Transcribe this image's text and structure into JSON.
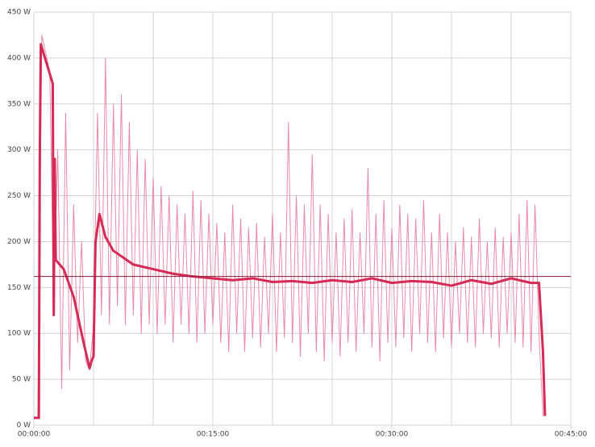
{
  "chart_data": {
    "type": "line",
    "xlim": [
      0,
      2700
    ],
    "ylim": [
      0,
      450
    ],
    "xgrid": [
      0,
      300,
      600,
      900,
      1200,
      1500,
      1800,
      2100,
      2400,
      2700
    ],
    "xticks": [
      {
        "value": 0,
        "label": "00:00:00"
      },
      {
        "value": 900,
        "label": "00:15:00"
      },
      {
        "value": 1800,
        "label": "00:30:00"
      },
      {
        "value": 2700,
        "label": "00:45:00"
      }
    ],
    "yticks": [
      {
        "value": 0,
        "label": "0 W"
      },
      {
        "value": 50,
        "label": "50 W"
      },
      {
        "value": 100,
        "label": "100 W"
      },
      {
        "value": 150,
        "label": "150 W"
      },
      {
        "value": 200,
        "label": "200 W"
      },
      {
        "value": 250,
        "label": "250 W"
      },
      {
        "value": 300,
        "label": "300 W"
      },
      {
        "value": 350,
        "label": "350 W"
      },
      {
        "value": 400,
        "label": "400 W"
      },
      {
        "value": 450,
        "label": "450 W"
      }
    ],
    "grid": true,
    "average": 162,
    "average_color": "#8b1a3a",
    "series": [
      {
        "color": "#e98aa2",
        "width": 1,
        "x": [
          0,
          20,
          40,
          60,
          80,
          100,
          120,
          140,
          160,
          180,
          200,
          220,
          240,
          260,
          280,
          300,
          320,
          340,
          360,
          380,
          400,
          420,
          440,
          460,
          480,
          500,
          520,
          540,
          560,
          580,
          600,
          620,
          640,
          660,
          680,
          700,
          720,
          740,
          760,
          780,
          800,
          820,
          840,
          860,
          880,
          900,
          920,
          940,
          960,
          980,
          1000,
          1020,
          1040,
          1060,
          1080,
          1100,
          1120,
          1140,
          1160,
          1180,
          1200,
          1220,
          1240,
          1260,
          1280,
          1300,
          1320,
          1340,
          1360,
          1380,
          1400,
          1420,
          1440,
          1460,
          1480,
          1500,
          1520,
          1540,
          1560,
          1580,
          1600,
          1620,
          1640,
          1660,
          1680,
          1700,
          1720,
          1740,
          1760,
          1780,
          1800,
          1820,
          1840,
          1860,
          1880,
          1900,
          1920,
          1940,
          1960,
          1980,
          2000,
          2020,
          2040,
          2060,
          2080,
          2100,
          2120,
          2140,
          2160,
          2180,
          2200,
          2220,
          2240,
          2260,
          2280,
          2300,
          2320,
          2340,
          2360,
          2380,
          2400,
          2420,
          2440,
          2460,
          2480,
          2500,
          2520,
          2540,
          2560
        ],
        "values": [
          8,
          8,
          425,
          405,
          385,
          130,
          300,
          40,
          340,
          60,
          240,
          90,
          200,
          70,
          60,
          110,
          340,
          120,
          400,
          110,
          350,
          130,
          360,
          110,
          330,
          120,
          300,
          100,
          290,
          110,
          270,
          100,
          260,
          110,
          250,
          90,
          240,
          110,
          230,
          100,
          255,
          90,
          245,
          100,
          230,
          110,
          220,
          90,
          210,
          80,
          240,
          100,
          225,
          80,
          215,
          95,
          220,
          85,
          205,
          100,
          230,
          80,
          210,
          95,
          330,
          90,
          250,
          75,
          240,
          100,
          295,
          80,
          240,
          70,
          230,
          90,
          210,
          75,
          225,
          90,
          235,
          80,
          210,
          100,
          280,
          85,
          230,
          70,
          245,
          90,
          215,
          85,
          240,
          95,
          230,
          80,
          225,
          100,
          245,
          90,
          210,
          80,
          230,
          95,
          210,
          85,
          200,
          100,
          215,
          90,
          205,
          85,
          225,
          100,
          200,
          95,
          215,
          85,
          205,
          100,
          210,
          90,
          230,
          85,
          245,
          80,
          240,
          100,
          10
        ]
      },
      {
        "color": "#d42a55",
        "width": 3,
        "x": [
          0,
          25,
          30,
          35,
          95,
          100,
          105,
          110,
          150,
          200,
          250,
          280,
          290,
          300,
          310,
          330,
          360,
          400,
          500,
          600,
          700,
          800,
          900,
          1000,
          1100,
          1200,
          1300,
          1400,
          1500,
          1600,
          1700,
          1800,
          1900,
          2000,
          2100,
          2200,
          2300,
          2400,
          2500,
          2540,
          2560,
          2570
        ],
        "values": [
          8,
          8,
          300,
          415,
          372,
          120,
          290,
          180,
          170,
          140,
          90,
          62,
          70,
          75,
          200,
          230,
          205,
          190,
          175,
          170,
          165,
          162,
          160,
          158,
          160,
          156,
          157,
          155,
          158,
          156,
          160,
          155,
          157,
          156,
          152,
          158,
          154,
          160,
          155,
          155,
          80,
          10
        ]
      }
    ]
  }
}
